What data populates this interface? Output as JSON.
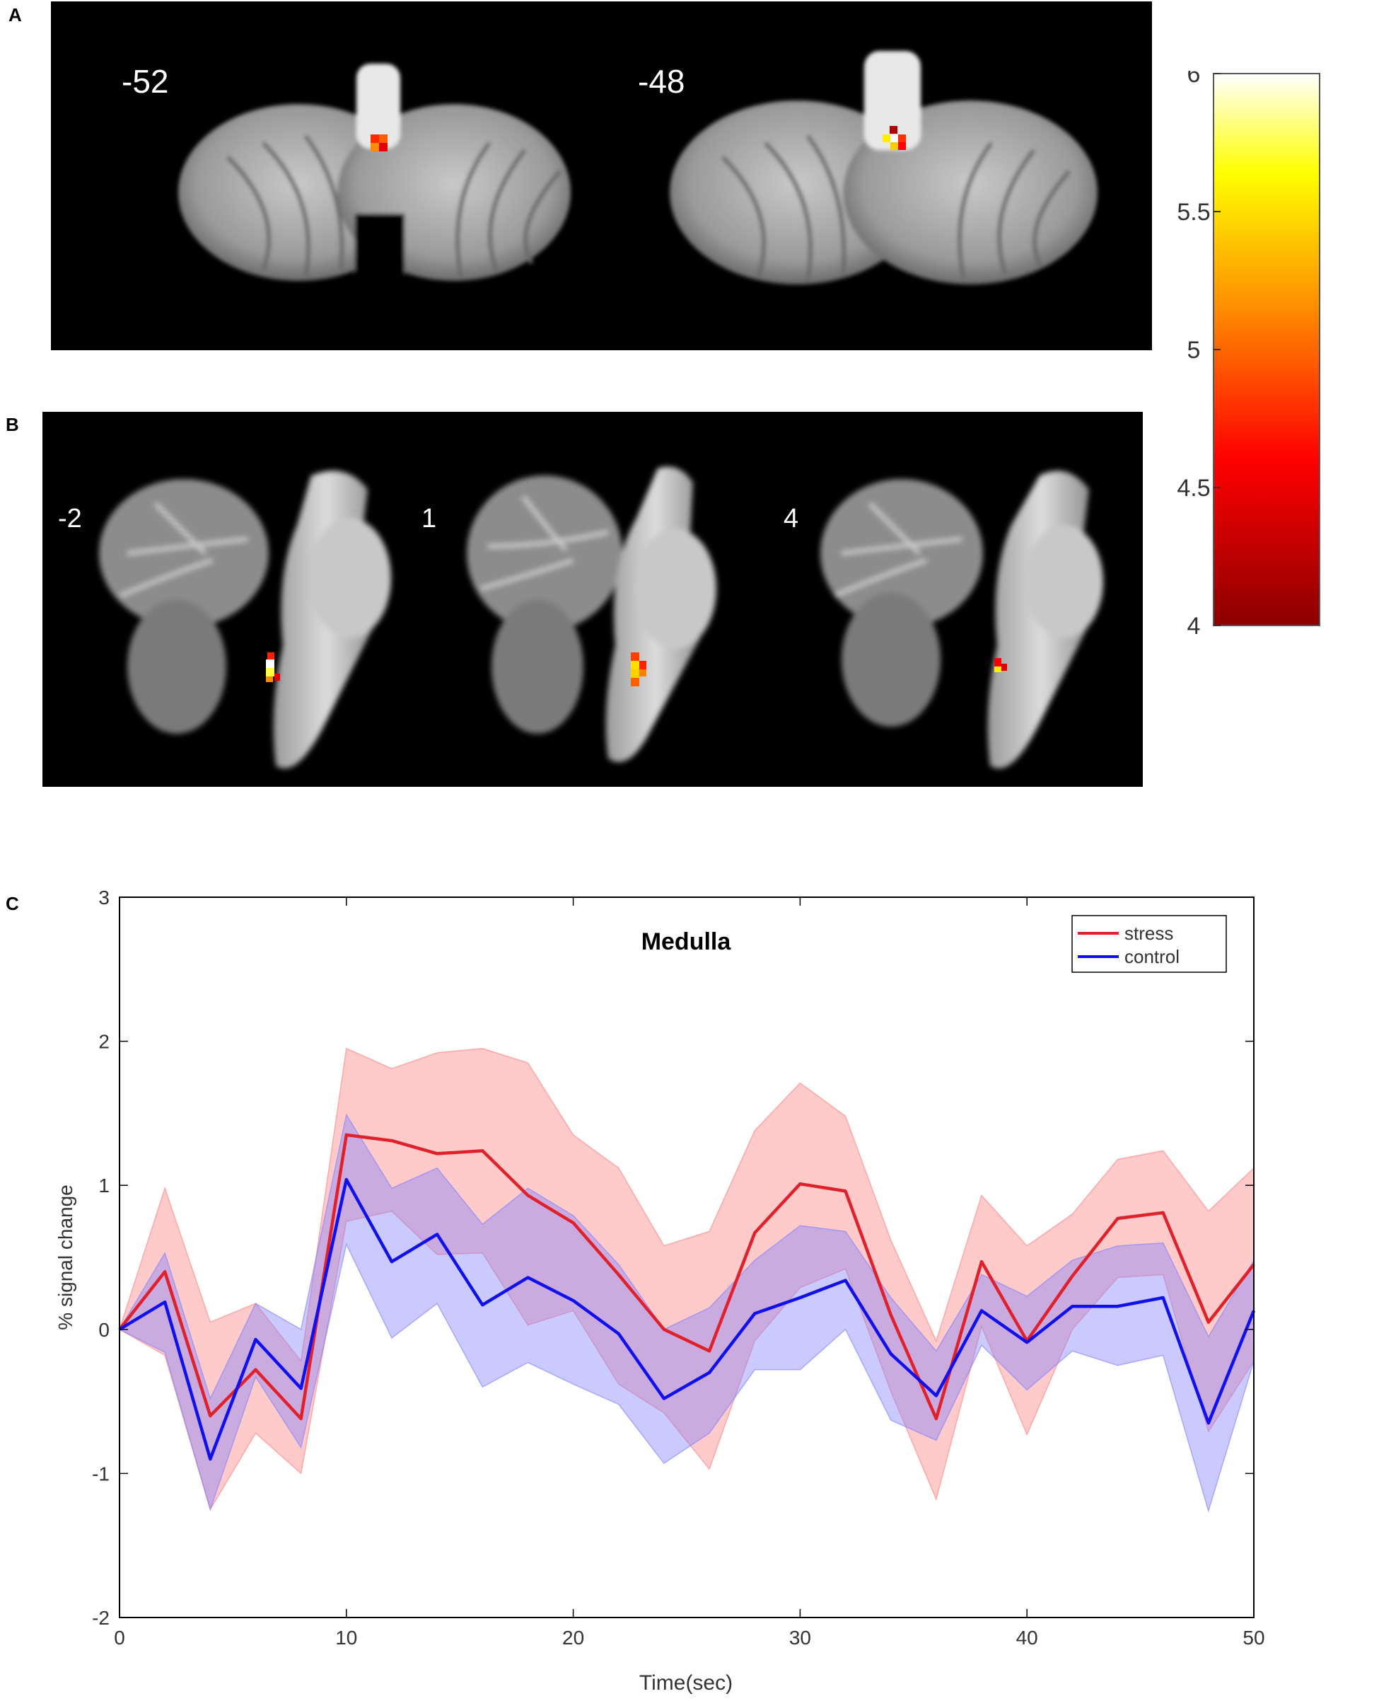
{
  "panels": {
    "a": {
      "letter": "A",
      "slices": [
        "-52",
        "-48"
      ]
    },
    "b": {
      "letter": "B",
      "slices": [
        "-2",
        "1",
        "4"
      ]
    },
    "c": {
      "letter": "C"
    }
  },
  "colorbar": {
    "ticks": [
      "6",
      "5.5",
      "5",
      "4.5",
      "4"
    ],
    "range": [
      4,
      6
    ],
    "colors": [
      "#8b0000",
      "#ff0000",
      "#ff8c00",
      "#ffff00",
      "#ffffff"
    ]
  },
  "chart_data": {
    "type": "line",
    "title": "Medulla",
    "xlabel": "Time(sec)",
    "ylabel": "% signal change",
    "xlim": [
      0,
      50
    ],
    "ylim": [
      -2,
      3
    ],
    "xticks": [
      "0",
      "10",
      "20",
      "30",
      "40",
      "50"
    ],
    "yticks": [
      "-2",
      "-1",
      "0",
      "1",
      "2",
      "3"
    ],
    "legend_position": "top-right",
    "x": [
      0,
      2,
      4,
      6,
      8,
      10,
      12,
      14,
      16,
      18,
      20,
      22,
      24,
      26,
      28,
      30,
      32,
      34,
      36,
      38,
      40,
      42,
      44,
      46,
      48,
      50
    ],
    "series": [
      {
        "name": "stress",
        "color": "#e0202a",
        "band_color": "#ff8080",
        "values": [
          0.0,
          0.4,
          -0.6,
          -0.28,
          -0.62,
          1.35,
          1.31,
          1.22,
          1.24,
          0.93,
          0.74,
          0.38,
          0.0,
          -0.15,
          0.67,
          1.01,
          0.96,
          0.1,
          -0.62,
          0.47,
          -0.08,
          0.37,
          0.77,
          0.81,
          0.05,
          0.45
        ],
        "upper": [
          0.0,
          0.98,
          0.05,
          0.18,
          -0.22,
          1.95,
          1.81,
          1.92,
          1.95,
          1.85,
          1.35,
          1.12,
          0.58,
          0.68,
          1.38,
          1.71,
          1.48,
          0.62,
          -0.08,
          0.93,
          0.58,
          0.8,
          1.18,
          1.24,
          0.82,
          1.12
        ],
        "lower": [
          0.0,
          -0.18,
          -1.25,
          -0.72,
          -1.0,
          0.75,
          0.82,
          0.52,
          0.53,
          0.03,
          0.13,
          -0.38,
          -0.58,
          -0.97,
          -0.08,
          0.29,
          0.42,
          -0.43,
          -1.18,
          0.02,
          -0.73,
          0.0,
          0.36,
          0.38,
          -0.71,
          -0.22
        ]
      },
      {
        "name": "control",
        "color": "#1010ee",
        "band_color": "#8080ff",
        "values": [
          0.0,
          0.19,
          -0.9,
          -0.07,
          -0.41,
          1.04,
          0.47,
          0.66,
          0.17,
          0.36,
          0.2,
          -0.03,
          -0.48,
          -0.3,
          0.11,
          0.22,
          0.34,
          -0.17,
          -0.46,
          0.13,
          -0.09,
          0.16,
          0.16,
          0.22,
          -0.65,
          0.13
        ],
        "upper": [
          0.0,
          0.53,
          -0.48,
          0.18,
          0.0,
          1.49,
          0.98,
          1.12,
          0.73,
          0.98,
          0.79,
          0.45,
          0.0,
          0.15,
          0.48,
          0.72,
          0.68,
          0.22,
          -0.15,
          0.38,
          0.23,
          0.48,
          0.58,
          0.6,
          -0.05,
          0.48
        ],
        "lower": [
          0.0,
          -0.16,
          -1.25,
          -0.33,
          -0.82,
          0.59,
          -0.06,
          0.18,
          -0.4,
          -0.23,
          -0.38,
          -0.52,
          -0.93,
          -0.72,
          -0.28,
          -0.28,
          0.0,
          -0.63,
          -0.77,
          -0.11,
          -0.42,
          -0.15,
          -0.25,
          -0.18,
          -1.26,
          -0.22
        ]
      }
    ]
  }
}
